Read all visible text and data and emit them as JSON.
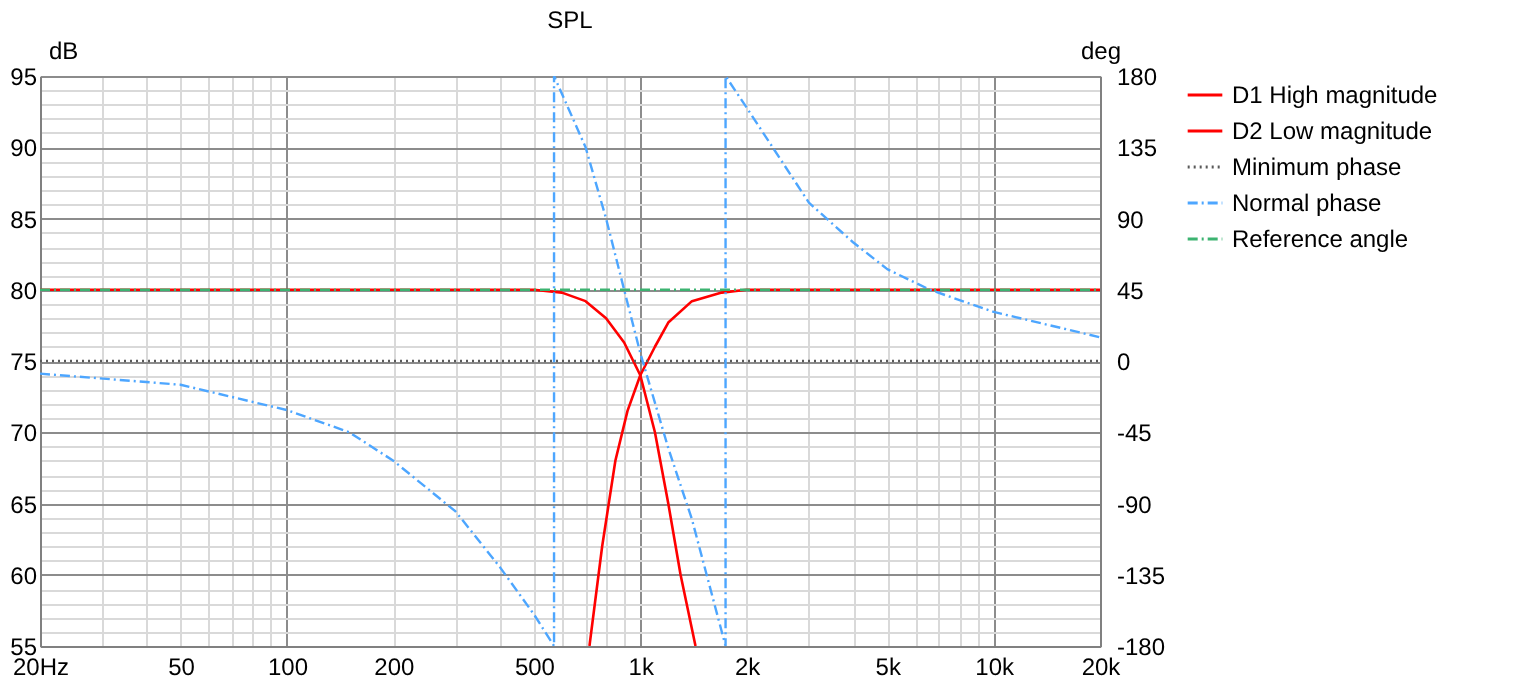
{
  "chart_data": {
    "type": "line",
    "title": "SPL",
    "ylabel": "dB",
    "y2label": "deg",
    "xlim": [
      20,
      20000
    ],
    "ylim": [
      55,
      95
    ],
    "y2lim": [
      -180,
      180
    ],
    "log": "x",
    "grid": true,
    "legend": "right",
    "xticks": [
      {
        "value": 20,
        "label": "20Hz"
      },
      {
        "value": 30,
        "label": null
      },
      {
        "value": 40,
        "label": null
      },
      50,
      {
        "value": 60,
        "label": null
      },
      {
        "value": 70,
        "label": null
      },
      {
        "value": 80,
        "label": null
      },
      {
        "value": 90,
        "label": null
      },
      100,
      200,
      {
        "value": 300,
        "label": null
      },
      {
        "value": 400,
        "label": null
      },
      500,
      {
        "value": 600,
        "label": null
      },
      {
        "value": 700,
        "label": null
      },
      {
        "value": 800,
        "label": null
      },
      {
        "value": 900,
        "label": null
      },
      {
        "value": 1000,
        "label": "1k"
      },
      {
        "value": 2000,
        "label": "2k"
      },
      {
        "value": 3000,
        "label": null
      },
      {
        "value": 4000,
        "label": null
      },
      {
        "value": 5000,
        "label": "5k"
      },
      {
        "value": 6000,
        "label": null
      },
      {
        "value": 7000,
        "label": null
      },
      {
        "value": 8000,
        "label": null
      },
      {
        "value": 9000,
        "label": null
      },
      {
        "value": 10000,
        "label": "10k"
      },
      {
        "value": 20000,
        "label": "20k"
      }
    ],
    "yticks": [
      55,
      {
        "value": 56,
        "label": null
      },
      {
        "value": 57,
        "label": null
      },
      {
        "value": 58,
        "label": null
      },
      {
        "value": 59,
        "label": null
      },
      60,
      {
        "value": 61,
        "label": null
      },
      {
        "value": 62,
        "label": null
      },
      {
        "value": 63,
        "label": null
      },
      {
        "value": 64,
        "label": null
      },
      65,
      {
        "value": 66,
        "label": null
      },
      {
        "value": 67,
        "label": null
      },
      {
        "value": 68,
        "label": null
      },
      {
        "value": 69,
        "label": null
      },
      70,
      {
        "value": 71,
        "label": null
      },
      {
        "value": 72,
        "label": null
      },
      {
        "value": 73,
        "label": null
      },
      {
        "value": 74,
        "label": null
      },
      75,
      {
        "value": 76,
        "label": null
      },
      {
        "value": 77,
        "label": null
      },
      {
        "value": 78,
        "label": null
      },
      {
        "value": 79,
        "label": null
      },
      80,
      {
        "value": 81,
        "label": null
      },
      {
        "value": 82,
        "label": null
      },
      {
        "value": 83,
        "label": null
      },
      {
        "value": 84,
        "label": null
      },
      85,
      {
        "value": 86,
        "label": null
      },
      {
        "value": 87,
        "label": null
      },
      {
        "value": 88,
        "label": null
      },
      {
        "value": 89,
        "label": null
      },
      90,
      {
        "value": 91,
        "label": null
      },
      {
        "value": 92,
        "label": null
      },
      {
        "value": 93,
        "label": null
      },
      {
        "value": 94,
        "label": null
      },
      95
    ],
    "y2ticks": [
      -180,
      -135,
      -90,
      -45,
      0,
      45,
      90,
      135,
      180
    ],
    "series": [
      {
        "name": "D1 High magnitude",
        "color": "#ff0000",
        "line_style": "solid",
        "x": [
          718,
          780,
          850,
          920,
          1000,
          1100,
          1200,
          1400,
          1700,
          2000,
          20000
        ],
        "values": [
          55,
          62,
          68,
          71.5,
          74,
          76,
          77.7,
          79.2,
          79.8,
          80,
          80
        ]
      },
      {
        "name": "D2 Low magnitude",
        "color": "#ff0000",
        "line_style": "solid",
        "x": [
          20,
          500,
          600,
          700,
          800,
          900,
          1000,
          1100,
          1200,
          1300,
          1433
        ],
        "values": [
          80,
          80,
          79.8,
          79.2,
          78,
          76.3,
          74,
          70,
          65,
          60,
          55
        ]
      },
      {
        "name": "Minimum phase",
        "color": "#5a5a5a",
        "line_style": "dotted",
        "axis": "y2",
        "x": [
          20,
          20000
        ],
        "values": [
          0,
          0
        ]
      },
      {
        "name": "Normal phase",
        "color": "#4da6ff",
        "line_style": "dashed",
        "axis": "y2",
        "x": [
          20,
          50,
          100,
          150,
          200,
          300,
          400,
          500,
          570,
          570,
          700,
          800,
          900,
          1000,
          1200,
          1400,
          1743,
          1743,
          2000,
          3000,
          4000,
          5000,
          6600,
          10000,
          20000
        ],
        "values": [
          -8,
          -15,
          -31,
          -45,
          -63,
          -95,
          -130,
          -160,
          -180,
          180,
          135,
          90,
          45,
          5,
          -55,
          -100,
          -180,
          180,
          160,
          100,
          75,
          58,
          45,
          31,
          15
        ]
      },
      {
        "name": "Reference angle",
        "color": "#3cb371",
        "line_style": "dashed",
        "axis": "y2",
        "x": [
          20,
          20000
        ],
        "values": [
          45,
          45
        ]
      }
    ]
  }
}
